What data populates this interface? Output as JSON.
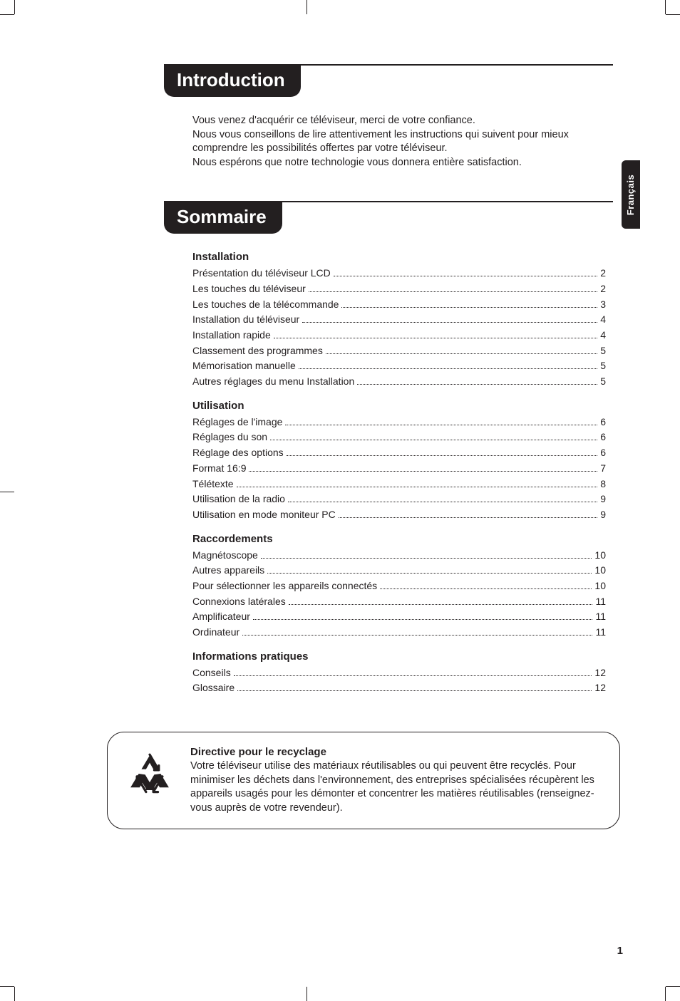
{
  "colors": {
    "ink": "#231f20",
    "paper": "#ffffff"
  },
  "side_tab": "Français",
  "page_number": "1",
  "intro_heading": "Introduction",
  "intro_paragraphs": [
    "Vous venez d'acquérir ce téléviseur, merci de votre confiance.",
    "Nous vous conseillons de lire attentivement les instructions qui suivent pour mieux comprendre les possibilités offertes par votre téléviseur.",
    "Nous espérons que notre technologie vous donnera entière satisfaction."
  ],
  "toc_heading": "Sommaire",
  "toc": [
    {
      "title": "Installation",
      "items": [
        {
          "label": "Présentation du téléviseur LCD",
          "page": "2"
        },
        {
          "label": "Les touches du téléviseur",
          "page": "2"
        },
        {
          "label": "Les touches de la télécommande",
          "page": "3"
        },
        {
          "label": "Installation du téléviseur",
          "page": "4"
        },
        {
          "label": "Installation rapide",
          "page": "4"
        },
        {
          "label": "Classement des programmes",
          "page": "5"
        },
        {
          "label": "Mémorisation manuelle",
          "page": "5"
        },
        {
          "label": "Autres réglages du menu Installation",
          "page": "5"
        }
      ]
    },
    {
      "title": "Utilisation",
      "items": [
        {
          "label": "Réglages de l'image",
          "page": "6"
        },
        {
          "label": "Réglages du son",
          "page": "6"
        },
        {
          "label": "Réglage des options",
          "page": "6"
        },
        {
          "label": "Format 16:9",
          "page": "7"
        },
        {
          "label": "Télétexte",
          "page": "8"
        },
        {
          "label": "Utilisation de la radio",
          "page": "9"
        },
        {
          "label": "Utilisation en mode moniteur PC",
          "page": "9"
        }
      ]
    },
    {
      "title": "Raccordements",
      "items": [
        {
          "label": "Magnétoscope",
          "page": "10"
        },
        {
          "label": "Autres appareils",
          "page": "10"
        },
        {
          "label": "Pour sélectionner les appareils connectés",
          "page": "10"
        },
        {
          "label": "Connexions latérales",
          "page": "11"
        },
        {
          "label": "Amplificateur",
          "page": "11"
        },
        {
          "label": "Ordinateur",
          "page": "11"
        }
      ]
    },
    {
      "title": "Informations pratiques",
      "items": [
        {
          "label": "Conseils",
          "page": "12"
        },
        {
          "label": "Glossaire",
          "page": "12"
        }
      ]
    }
  ],
  "callout": {
    "title": "Directive pour le recyclage",
    "body": "Votre téléviseur utilise des matériaux réutilisables ou qui peuvent être recyclés. Pour minimiser les déchets dans l'environnement, des entreprises spécialisées récupèrent les appareils usagés pour les démonter et concentrer les matières réutilisables (renseignez-vous auprès de votre revendeur).",
    "icon": "recycle-icon"
  }
}
